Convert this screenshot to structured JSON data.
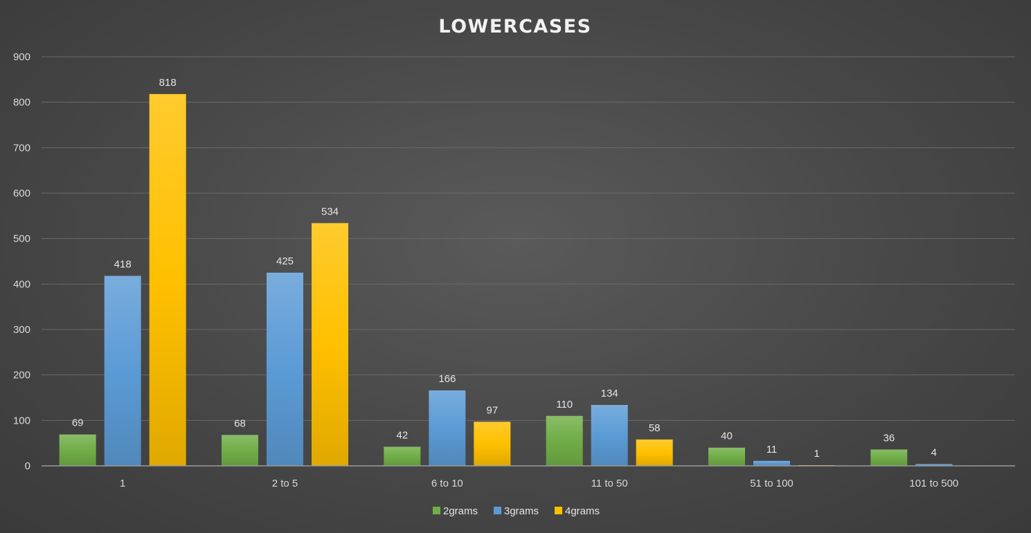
{
  "chart_data": {
    "type": "bar",
    "title": "LOWERCASES",
    "xlabel": "",
    "ylabel": "",
    "ylim": [
      0,
      900
    ],
    "y_ticks": [
      0,
      100,
      200,
      300,
      400,
      500,
      600,
      700,
      800,
      900
    ],
    "grid": true,
    "legend_position": "bottom",
    "categories": [
      "1",
      "2 to 5",
      "6 to 10",
      "11 to 50",
      "51 to 100",
      "101 to 500"
    ],
    "series": [
      {
        "name": "2grams",
        "color": "#70ad47",
        "values": [
          69,
          68,
          42,
          110,
          40,
          36
        ]
      },
      {
        "name": "3grams",
        "color": "#5b9bd5",
        "values": [
          418,
          425,
          166,
          134,
          11,
          4
        ]
      },
      {
        "name": "4grams",
        "color": "#ffc000",
        "values": [
          818,
          534,
          97,
          58,
          1,
          null
        ]
      }
    ]
  }
}
